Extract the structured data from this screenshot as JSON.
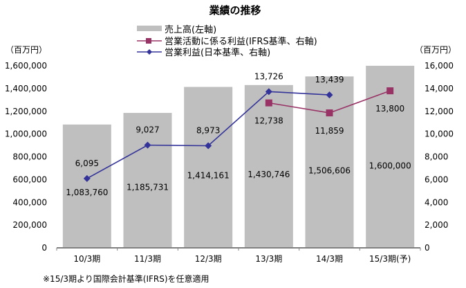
{
  "chart_data": {
    "type": "bar",
    "title": "業績の推移",
    "categories": [
      "10/3期",
      "11/3期",
      "12/3期",
      "13/3期",
      "14/3期",
      "15/3期(予)"
    ],
    "left_axis": {
      "label": "（百万円）",
      "ylim": [
        0,
        1600000
      ],
      "ticks": [
        "0",
        "200,000",
        "400,000",
        "600,000",
        "800,000",
        "1,000,000",
        "1,200,000",
        "1,400,000",
        "1,600,000"
      ]
    },
    "right_axis": {
      "label": "（百万円）",
      "ylim": [
        0,
        16000
      ],
      "ticks": [
        "0",
        "2,000",
        "4,000",
        "6,000",
        "8,000",
        "10,000",
        "12,000",
        "14,000",
        "16,000"
      ]
    },
    "series": [
      {
        "name": "売上高(左軸)",
        "type": "bar",
        "axis": "left",
        "color": "#bfbfbf",
        "values": [
          1083760,
          1185731,
          1414161,
          1430746,
          1506606,
          1600000
        ],
        "labels": [
          "1,083,760",
          "1,185,731",
          "1,414,161",
          "1,430,746",
          "1,506,606",
          "1,600,000"
        ]
      },
      {
        "name": "営業活動に係る利益(IFRS基準、右軸)",
        "type": "line",
        "axis": "right",
        "color": "#993366",
        "marker": "square",
        "values": [
          null,
          null,
          null,
          12738,
          11859,
          13800
        ],
        "labels": [
          null,
          null,
          null,
          "12,738",
          "11,859",
          "13,800"
        ]
      },
      {
        "name": "営業利益(日本基準、右軸)",
        "type": "line",
        "axis": "right",
        "color": "#333399",
        "marker": "diamond",
        "values": [
          6095,
          9027,
          8973,
          13726,
          13439,
          null
        ],
        "labels": [
          "6,095",
          "9,027",
          "8,973",
          "13,726",
          "13,439",
          null
        ]
      }
    ],
    "footnote": "※15/3期より国際会計基準(IFRS)を任意適用"
  }
}
